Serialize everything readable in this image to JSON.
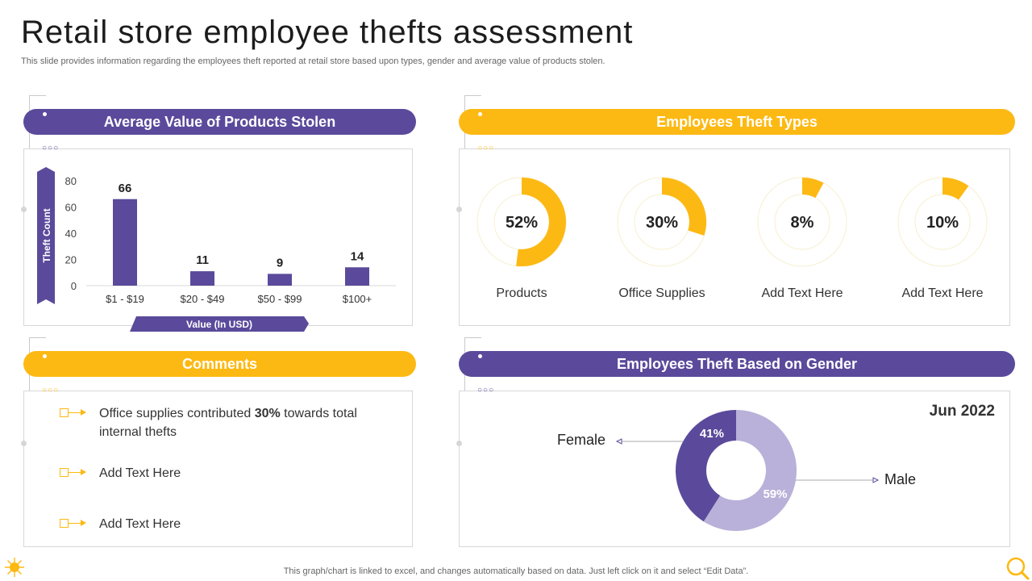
{
  "header": {
    "title": "Retail store employee thefts assessment",
    "subtitle": "This slide provides information regarding the employees theft reported at retail store based upon types, gender and average value of products stolen."
  },
  "colors": {
    "purple": "#5b4a9b",
    "yellow": "#fdb913",
    "light_purple": "#b9b1d9",
    "ring": "#f7f0cf"
  },
  "sections": {
    "avg_value": "Average Value of Products Stolen",
    "theft_types": "Employees Theft Types",
    "comments": "Comments",
    "gender": "Employees Theft Based on Gender"
  },
  "comments": [
    {
      "pre": "Office supplies contributed ",
      "bold": "30%",
      "post": " towards total internal thefts"
    },
    {
      "pre": "Add Text Here",
      "bold": "",
      "post": ""
    },
    {
      "pre": "Add Text Here",
      "bold": "",
      "post": ""
    }
  ],
  "footer": {
    "note": "This graph/chart is linked to excel,  and changes automatically based on data. Just left click on it and select “Edit Data”."
  },
  "icons": {
    "corner_left": "sun-icon",
    "corner_right": "magnifier-icon"
  },
  "chart_data": [
    {
      "type": "bar",
      "title": "Average Value of Products Stolen",
      "categories": [
        "$1 - $19",
        "$20 - $49",
        "$50 - $99",
        "$100+"
      ],
      "values": [
        66,
        11,
        9,
        14
      ],
      "ylabel": "Theft Count",
      "xlabel": "Value (In USD)",
      "ylim": [
        0,
        80
      ],
      "yticks": [
        0,
        20,
        40,
        60,
        80
      ],
      "color": "#5b4a9b",
      "grid": false
    },
    {
      "type": "pie",
      "title": "Employees Theft Types",
      "items": [
        {
          "label": "Products",
          "value": 52,
          "value_label": "52%"
        },
        {
          "label": "Office Supplies",
          "value": 30,
          "value_label": "30%"
        },
        {
          "label": "Add Text Here",
          "value": 8,
          "value_label": "8%"
        },
        {
          "label": "Add Text Here",
          "value": 10,
          "value_label": "10%"
        }
      ],
      "color": "#fdb913"
    },
    {
      "type": "pie",
      "title": "Employees Theft Based on Gender",
      "annotation": "Jun 2022",
      "slices": [
        {
          "label": "Female",
          "value": 41,
          "value_label": "41%",
          "color": "#5b4a9b"
        },
        {
          "label": "Male",
          "value": 59,
          "value_label": "59%",
          "color": "#b9b1d9"
        }
      ]
    }
  ]
}
